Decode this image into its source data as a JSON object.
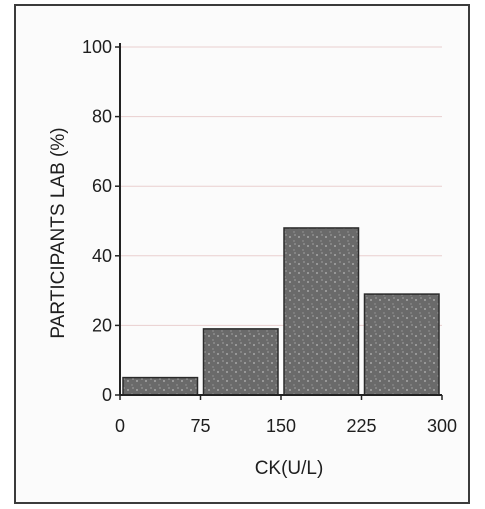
{
  "chart_data": {
    "type": "bar",
    "title": "",
    "xlabel": "CK(U/L)",
    "ylabel": "PARTICIPANTS LAB (%)",
    "x_ticks": [
      "0",
      "75",
      "150",
      "225",
      "300"
    ],
    "y_ticks": [
      "0",
      "20",
      "40",
      "60",
      "80",
      "100"
    ],
    "bins": [
      [
        0,
        75
      ],
      [
        75,
        150
      ],
      [
        150,
        225
      ],
      [
        225,
        300
      ]
    ],
    "values": [
      5,
      19,
      48,
      29
    ],
    "xlim": [
      0,
      300
    ],
    "ylim": [
      0,
      100
    ],
    "grid": true,
    "colors": {
      "bar": "#6a6a6a",
      "bar_border": "#2a2a2a",
      "axis": "#222222",
      "grid": "#e9cfcf"
    }
  }
}
